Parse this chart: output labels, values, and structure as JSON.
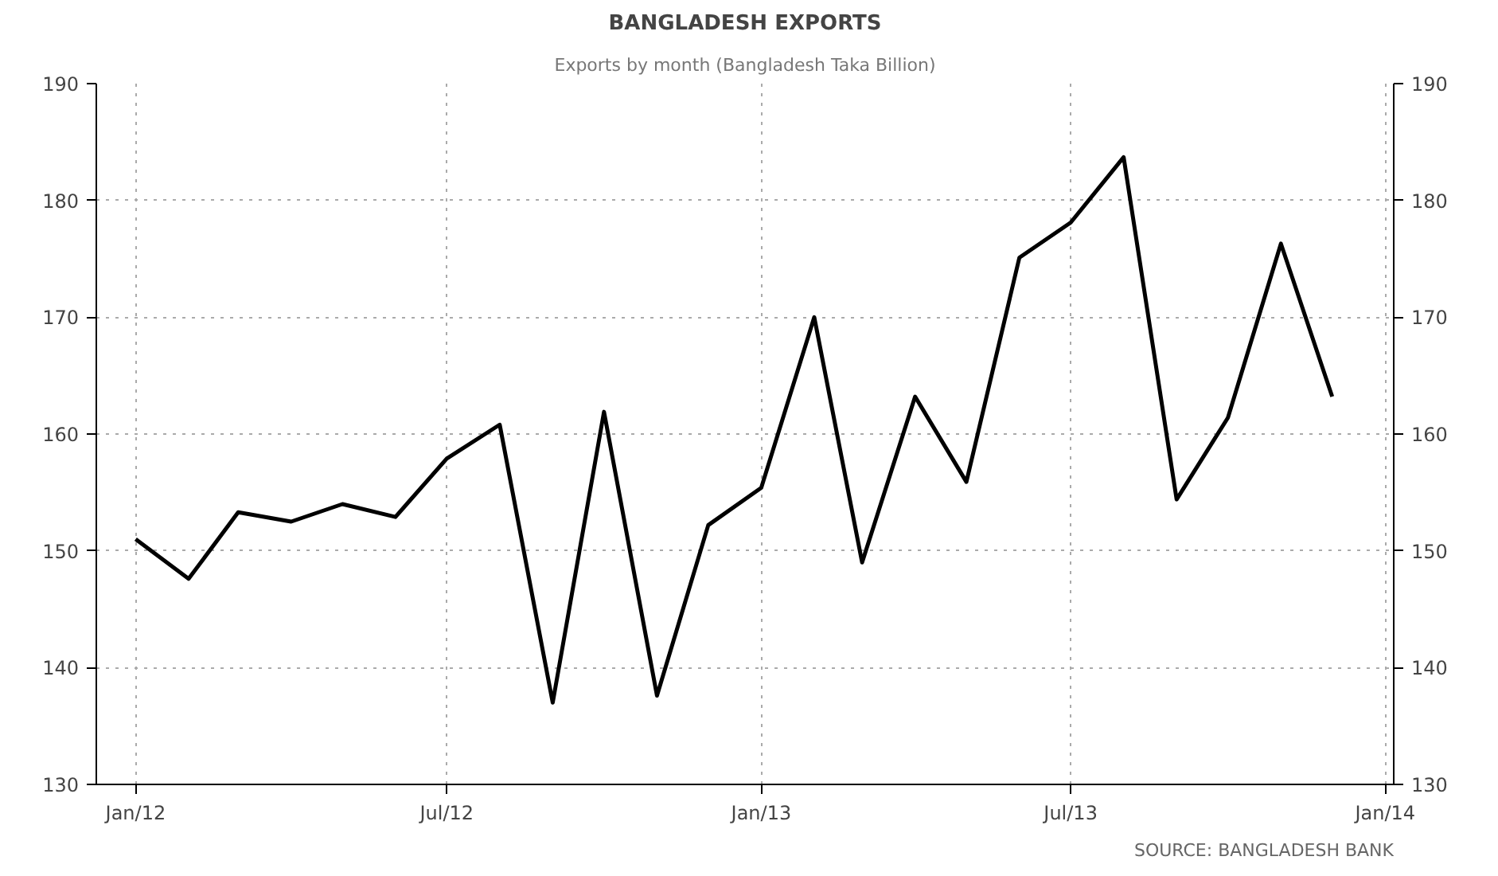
{
  "chart_data": {
    "type": "line",
    "title": "BANGLADESH EXPORTS",
    "subtitle": "Exports by month (Bangladesh Taka Billion)",
    "x": [
      "2012-01",
      "2012-02",
      "2012-03",
      "2012-04",
      "2012-05",
      "2012-06",
      "2012-07",
      "2012-08",
      "2012-09",
      "2012-10",
      "2012-11",
      "2012-12",
      "2013-01",
      "2013-02",
      "2013-03",
      "2013-04",
      "2013-05",
      "2013-06",
      "2013-07",
      "2013-08",
      "2013-09",
      "2013-10",
      "2013-11",
      "2013-12"
    ],
    "series": [
      {
        "color": "#000000",
        "values": [
          151.0,
          147.6,
          153.3,
          152.5,
          154.0,
          152.9,
          157.9,
          160.8,
          137.0,
          161.9,
          137.6,
          152.2,
          155.4,
          170.0,
          149.0,
          163.2,
          155.9,
          175.1,
          178.1,
          183.7,
          154.4,
          161.4,
          176.3,
          163.2
        ]
      }
    ],
    "xlim": [
      "2011-12-09",
      "2014-01-06"
    ],
    "xticks": [
      {
        "value": "2012-01-01",
        "label": "Jan/12"
      },
      {
        "value": "2012-07-01",
        "label": "Jul/12"
      },
      {
        "value": "2013-01-01",
        "label": "Jan/13"
      },
      {
        "value": "2013-07-01",
        "label": "Jul/13"
      },
      {
        "value": "2014-01-01",
        "label": "Jan/14"
      }
    ],
    "ylim": [
      130,
      190
    ],
    "yticks": [
      130,
      140,
      150,
      160,
      170,
      180,
      190
    ],
    "y2lim": [
      130,
      190
    ],
    "y2ticks": [
      130,
      140,
      150,
      160,
      170,
      180,
      190
    ],
    "grid": true,
    "line_style": "solid",
    "marker": "none",
    "annotations": [
      "SOURCE: BANGLADESH BANK"
    ]
  }
}
